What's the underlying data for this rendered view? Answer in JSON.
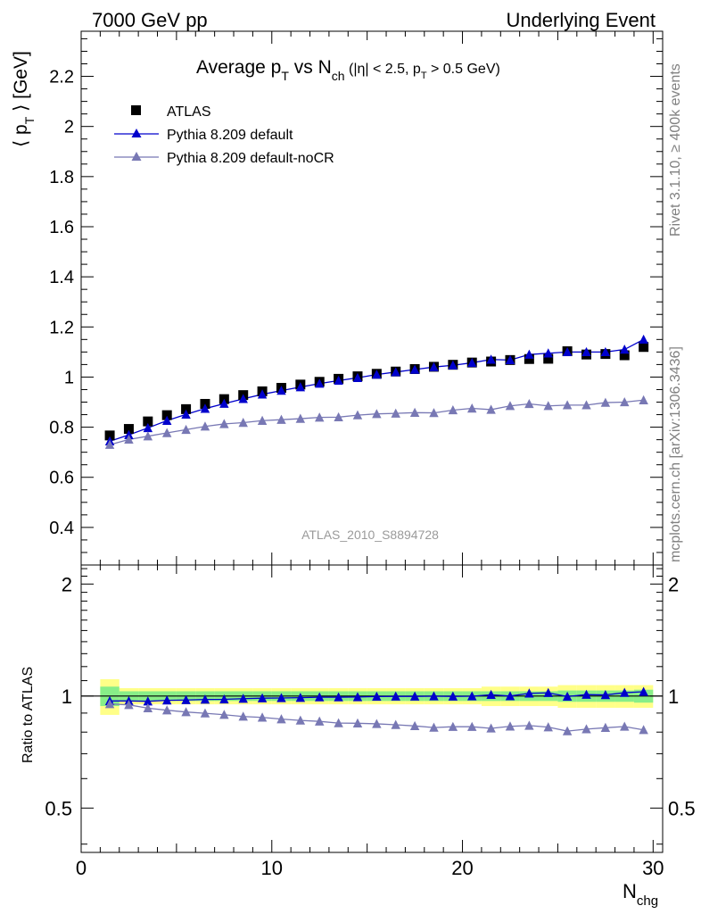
{
  "header": {
    "left": "7000 GeV pp",
    "right": "Underlying Event"
  },
  "side_text": {
    "rivet": "Rivet 3.1.10, ≥ 400k events",
    "mcplots": "mcplots.cern.ch [arXiv:1306.3436]"
  },
  "chart_data": {
    "type": "scatter",
    "title": {
      "main": "Average p",
      "sub_T": "T",
      "vs": " vs N",
      "sub_ch": "ch",
      "cut_open": " (|η| < 2.5, p",
      "cut_sub": "T",
      "cut_close": " > 0.5 GeV)"
    },
    "watermark": "ATLAS_2010_S8894728",
    "ylabel": {
      "open": "⟨ p",
      "sub": "T",
      "close": " ⟩ [GeV]"
    },
    "xlabel": {
      "main": "N",
      "sub": "chg"
    },
    "ratio_ylabel": "Ratio to ATLAS",
    "xlim": [
      0,
      30.5
    ],
    "ylim": [
      0.25,
      2.38
    ],
    "ratio_ylim": [
      0.38,
      2.25
    ],
    "ratio_scale": "log",
    "xticks": [
      "0",
      "10",
      "20",
      "30"
    ],
    "yticks": [
      "0.4",
      "0.6",
      "0.8",
      "1",
      "1.2",
      "1.4",
      "1.6",
      "1.8",
      "2",
      "2.2"
    ],
    "ratio_yticks": [
      "0.5",
      "1",
      "2"
    ],
    "legend_position": "top-left",
    "x": [
      1.5,
      2.5,
      3.5,
      4.5,
      5.5,
      6.5,
      7.5,
      8.5,
      9.5,
      10.5,
      11.5,
      12.5,
      13.5,
      14.5,
      15.5,
      16.5,
      17.5,
      18.5,
      19.5,
      20.5,
      21.5,
      22.5,
      23.5,
      24.5,
      25.5,
      26.5,
      27.5,
      28.5,
      29.5
    ],
    "series": [
      {
        "name": "ATLAS",
        "color": "#000000",
        "marker": "square",
        "values": [
          0.767,
          0.793,
          0.823,
          0.848,
          0.872,
          0.893,
          0.912,
          0.928,
          0.943,
          0.957,
          0.97,
          0.981,
          0.993,
          1.003,
          1.013,
          1.022,
          1.032,
          1.041,
          1.049,
          1.058,
          1.062,
          1.068,
          1.072,
          1.073,
          1.103,
          1.09,
          1.092,
          1.087,
          1.12
        ]
      },
      {
        "name": "Pythia 8.209 default",
        "color": "#0000cc",
        "marker": "triangle",
        "values": [
          0.744,
          0.769,
          0.797,
          0.826,
          0.851,
          0.874,
          0.894,
          0.913,
          0.931,
          0.946,
          0.96,
          0.974,
          0.986,
          0.997,
          1.01,
          1.02,
          1.03,
          1.04,
          1.047,
          1.057,
          1.07,
          1.068,
          1.09,
          1.095,
          1.1,
          1.1,
          1.1,
          1.11,
          1.15
        ]
      },
      {
        "name": "Pythia 8.209 default-noCR",
        "color": "#7878b4",
        "marker": "triangle",
        "values": [
          0.73,
          0.751,
          0.764,
          0.777,
          0.79,
          0.803,
          0.813,
          0.818,
          0.826,
          0.83,
          0.834,
          0.839,
          0.84,
          0.848,
          0.853,
          0.855,
          0.858,
          0.857,
          0.868,
          0.875,
          0.87,
          0.885,
          0.893,
          0.885,
          0.888,
          0.888,
          0.898,
          0.9,
          0.908
        ]
      }
    ],
    "ratio_series": [
      {
        "name": "Pythia 8.209 default",
        "color": "#0000cc",
        "values": [
          0.97,
          0.97,
          0.968,
          0.974,
          0.976,
          0.979,
          0.98,
          0.984,
          0.987,
          0.988,
          0.99,
          0.993,
          0.993,
          0.994,
          0.997,
          0.998,
          0.998,
          0.999,
          0.998,
          0.999,
          1.008,
          1.0,
          1.017,
          1.02,
          0.997,
          1.009,
          1.007,
          1.021,
          1.027
        ]
      },
      {
        "name": "Pythia 8.209 default-noCR",
        "color": "#7878b4",
        "values": [
          0.952,
          0.947,
          0.928,
          0.916,
          0.906,
          0.899,
          0.891,
          0.881,
          0.876,
          0.867,
          0.86,
          0.855,
          0.846,
          0.845,
          0.842,
          0.837,
          0.831,
          0.823,
          0.827,
          0.827,
          0.819,
          0.829,
          0.833,
          0.825,
          0.805,
          0.815,
          0.822,
          0.828,
          0.811
        ]
      }
    ],
    "ratio_band": {
      "inner_color": "#88ee88",
      "outer_color": "#ffff88",
      "inner_halfwidth": [
        0.06,
        0.03,
        0.03,
        0.03,
        0.03,
        0.03,
        0.03,
        0.03,
        0.03,
        0.03,
        0.03,
        0.03,
        0.03,
        0.03,
        0.03,
        0.03,
        0.03,
        0.03,
        0.03,
        0.03,
        0.03,
        0.03,
        0.03,
        0.03,
        0.035,
        0.035,
        0.035,
        0.035,
        0.04
      ],
      "outer_halfwidth": [
        0.11,
        0.05,
        0.05,
        0.05,
        0.05,
        0.05,
        0.05,
        0.05,
        0.05,
        0.05,
        0.05,
        0.05,
        0.05,
        0.05,
        0.05,
        0.05,
        0.05,
        0.05,
        0.05,
        0.05,
        0.06,
        0.06,
        0.06,
        0.06,
        0.07,
        0.07,
        0.07,
        0.07,
        0.07
      ]
    }
  }
}
